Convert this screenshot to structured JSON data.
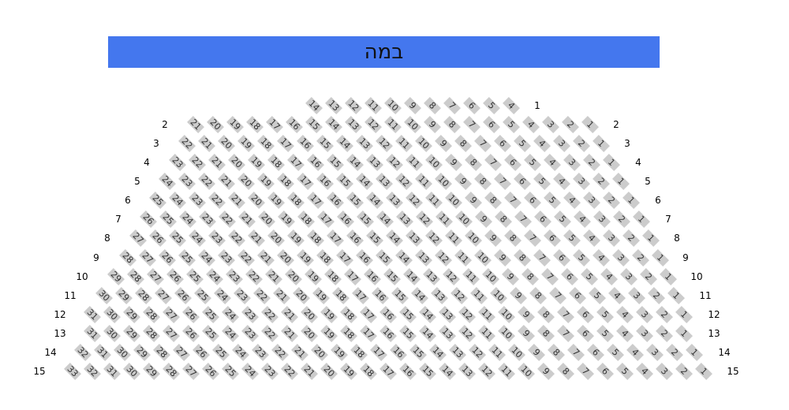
{
  "stage": {
    "label": "במה",
    "color": "#4477ee"
  },
  "seat_color": "#cccccc",
  "rows": [
    {
      "row": "1",
      "seat_high": 14,
      "seat_low": 4,
      "left_label": false
    },
    {
      "row": "2",
      "seat_high": 21,
      "seat_low": 1,
      "left_label": true
    },
    {
      "row": "3",
      "seat_high": 22,
      "seat_low": 1,
      "left_label": true
    },
    {
      "row": "4",
      "seat_high": 23,
      "seat_low": 1,
      "left_label": true
    },
    {
      "row": "5",
      "seat_high": 24,
      "seat_low": 1,
      "left_label": true
    },
    {
      "row": "6",
      "seat_high": 25,
      "seat_low": 1,
      "left_label": true
    },
    {
      "row": "7",
      "seat_high": 26,
      "seat_low": 1,
      "left_label": true
    },
    {
      "row": "8",
      "seat_high": 27,
      "seat_low": 1,
      "left_label": true
    },
    {
      "row": "9",
      "seat_high": 28,
      "seat_low": 1,
      "left_label": true
    },
    {
      "row": "10",
      "seat_high": 29,
      "seat_low": 1,
      "left_label": true
    },
    {
      "row": "11",
      "seat_high": 30,
      "seat_low": 1,
      "left_label": true
    },
    {
      "row": "12",
      "seat_high": 31,
      "seat_low": 1,
      "left_label": true
    },
    {
      "row": "13",
      "seat_high": 31,
      "seat_low": 1,
      "left_label": true
    },
    {
      "row": "14",
      "seat_high": 32,
      "seat_low": 1,
      "left_label": true
    },
    {
      "row": "15",
      "seat_high": 33,
      "seat_low": 1,
      "left_label": true
    }
  ]
}
